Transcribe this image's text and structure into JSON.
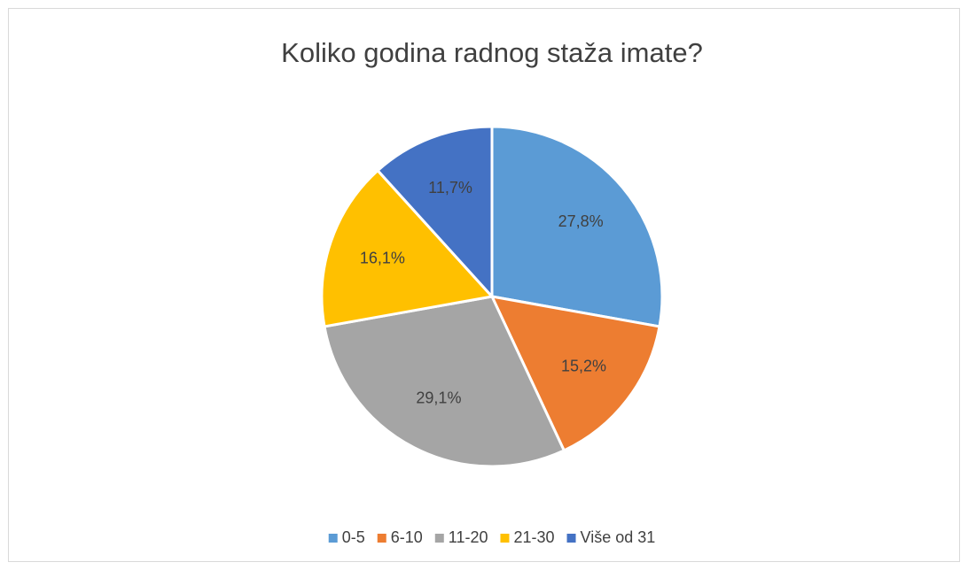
{
  "chart_data": {
    "type": "pie",
    "title": "Koliko godina radnog staža imate?",
    "categories": [
      "0-5",
      "6-10",
      "11-20",
      "21-30",
      "Više od 31"
    ],
    "values": [
      27.8,
      15.2,
      29.1,
      16.1,
      11.7
    ],
    "value_labels": [
      "27,8%",
      "15,2%",
      "29,1%",
      "16,1%",
      "11,7%"
    ],
    "colors": [
      "#5b9bd5",
      "#ed7d31",
      "#a5a5a5",
      "#ffc000",
      "#4472c4"
    ],
    "legend": "bottom"
  }
}
